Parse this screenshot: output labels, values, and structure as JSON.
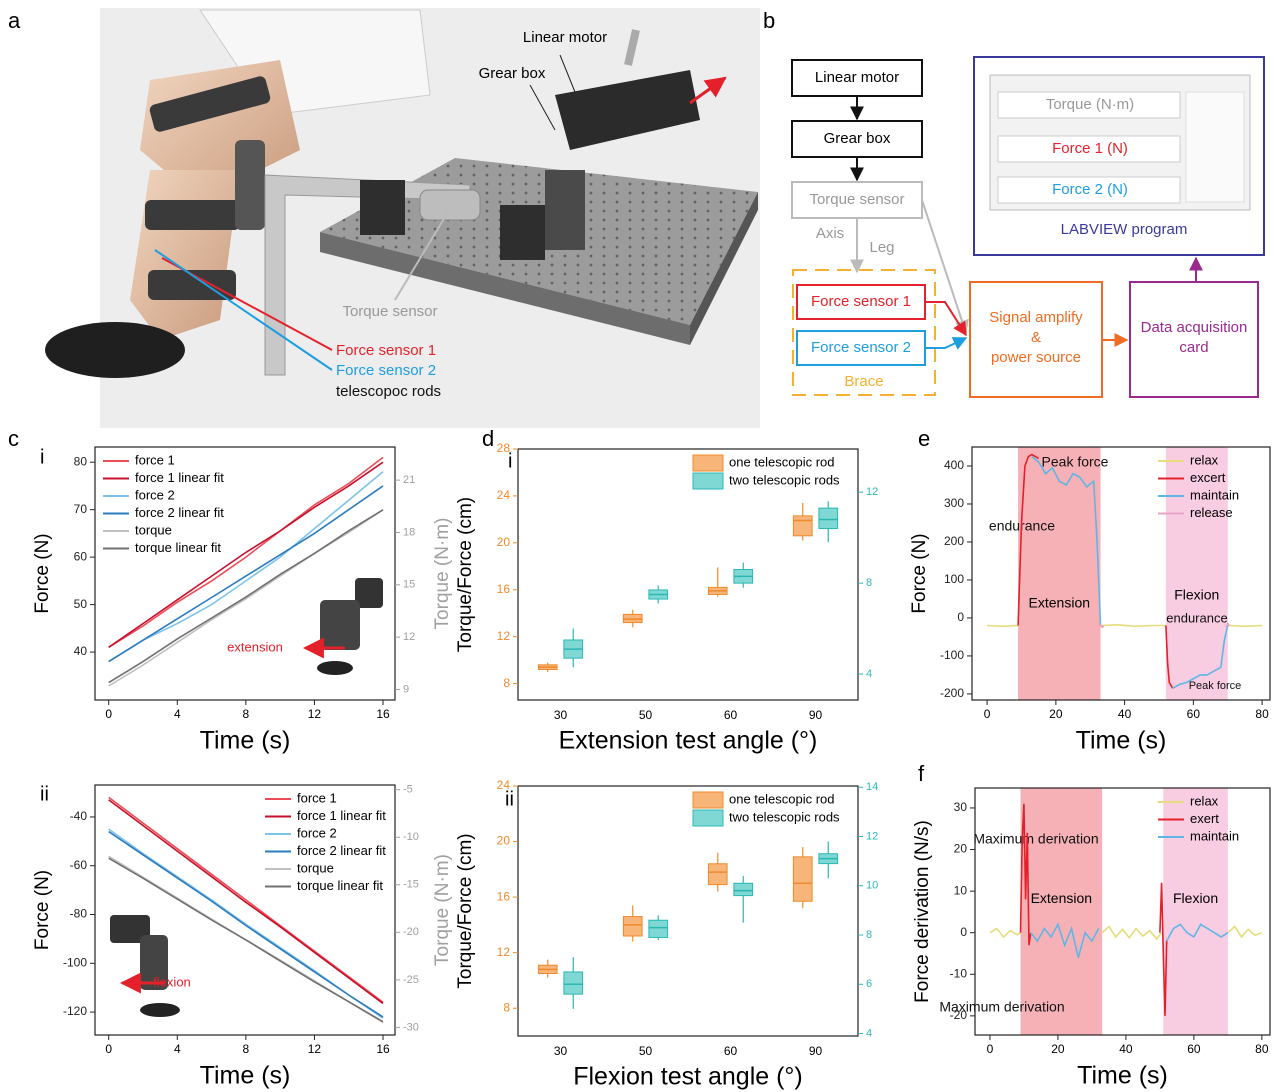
{
  "panel_labels": [
    "a",
    "b",
    "c",
    "d",
    "e",
    "f"
  ],
  "photo": {
    "labels": [
      "Linear motor",
      "Grear box",
      "Torque sensor",
      "Force sensor 1",
      "Force sensor 2",
      "telescopoc rods"
    ]
  },
  "diagram": {
    "nodes": [
      "Linear motor",
      "Grear box",
      "Torque sensor",
      "Force sensor 1",
      "Force sensor 2"
    ],
    "edge_labels": [
      "Axis",
      "Leg"
    ],
    "group": "Brace",
    "amplifier": [
      "Signal amplify",
      "&",
      "power source"
    ],
    "daq": [
      "Data acquisition",
      "card"
    ],
    "screen": [
      "Torque (N·m)",
      "Force 1 (N)",
      "Force 2 (N)"
    ],
    "program": "LABVIEW program"
  },
  "chart_data": [
    {
      "type": "line",
      "sublabel": "i",
      "xlabel": "Time (s)",
      "ylabel": "Force (N)",
      "y2label": "Torque (N·m)",
      "y2color": "#a0a0a0",
      "annotations": [
        "extension"
      ],
      "legend": "upper left",
      "x": [
        0,
        2,
        4,
        6,
        8,
        10,
        12,
        14,
        16
      ],
      "xlim": [
        -0.8,
        16.7
      ],
      "xticks": [
        0,
        4,
        8,
        12,
        16
      ],
      "ylim": [
        29.9,
        83.2
      ],
      "yticks": [
        40,
        50,
        60,
        70,
        80
      ],
      "y2lim": [
        8.4,
        22.9
      ],
      "y2ticks": [
        9,
        12,
        15,
        18,
        21
      ],
      "series": [
        {
          "name": "force 1",
          "color": "#ec4c55",
          "values": [
            41,
            45.5,
            50.5,
            55,
            60,
            65.5,
            71,
            75.5,
            81
          ]
        },
        {
          "name": "force 1 linear fit",
          "color": "#c8102e",
          "values": [
            41,
            46,
            51,
            56,
            61,
            65.5,
            70.5,
            75,
            80
          ]
        },
        {
          "name": "force 2",
          "color": "#7cc3ea",
          "values": [
            38,
            42.5,
            46,
            50,
            55,
            60,
            66,
            72,
            78
          ]
        },
        {
          "name": "force 2 linear fit",
          "color": "#2b7bbf",
          "values": [
            38,
            42.5,
            47,
            51.5,
            56,
            60.5,
            65,
            70,
            75
          ]
        },
        {
          "name": "torque",
          "color": "#c0c0c0",
          "axis": "y2",
          "values": [
            9.2,
            10.4,
            11.7,
            13.0,
            14.2,
            15.5,
            16.8,
            18.0,
            19.3
          ]
        },
        {
          "name": "torque linear fit",
          "color": "#707070",
          "axis": "y2",
          "values": [
            9.4,
            10.6,
            11.9,
            13.1,
            14.3,
            15.6,
            16.8,
            18.1,
            19.3
          ]
        }
      ]
    },
    {
      "type": "line",
      "sublabel": "ii",
      "xlabel": "Time (s)",
      "ylabel": "Force (N)",
      "y2label": "Torque (N·m)",
      "y2color": "#a0a0a0",
      "annotations": [
        "flexion"
      ],
      "legend": "upper right",
      "x": [
        0,
        2,
        4,
        6,
        8,
        10,
        12,
        14,
        16
      ],
      "xlim": [
        -0.8,
        16.7
      ],
      "xticks": [
        0,
        4,
        8,
        12,
        16
      ],
      "ylim": [
        -129.4,
        -26.9
      ],
      "yticks": [
        -40,
        -60,
        -80,
        -100,
        -120
      ],
      "y2lim": [
        -30.8,
        -4.5
      ],
      "y2ticks": [
        -5,
        -10,
        -15,
        -20,
        -25,
        -30
      ],
      "series": [
        {
          "name": "force 1",
          "color": "#ec4c55",
          "values": [
            -32,
            -42.5,
            -53,
            -63.5,
            -74,
            -84.5,
            -95,
            -105.5,
            -116
          ]
        },
        {
          "name": "force 1 linear fit",
          "color": "#c8102e",
          "values": [
            -33,
            -43.5,
            -54,
            -64.5,
            -75,
            -85,
            -95.5,
            -106,
            -116.5
          ]
        },
        {
          "name": "force 2",
          "color": "#7cc3ea",
          "values": [
            -45,
            -55,
            -64.5,
            -74,
            -84,
            -93.5,
            -103,
            -113,
            -122.5
          ]
        },
        {
          "name": "force 2 linear fit",
          "color": "#2b7bbf",
          "values": [
            -46,
            -55.5,
            -65,
            -74.5,
            -84.5,
            -94,
            -103.5,
            -113,
            -122
          ]
        },
        {
          "name": "torque",
          "color": "#c0c0c0",
          "axis": "y2",
          "values": [
            -12,
            -14.2,
            -16.4,
            -18.6,
            -20.8,
            -22.9,
            -25.1,
            -27.3,
            -29.5
          ]
        },
        {
          "name": "torque linear fit",
          "color": "#707070",
          "axis": "y2",
          "values": [
            -12.2,
            -14.3,
            -16.5,
            -18.7,
            -20.8,
            -23.0,
            -25.2,
            -27.3,
            -29.4
          ]
        }
      ]
    },
    {
      "type": "box",
      "sublabel": "i",
      "xlabel": "Extension test angle (°)",
      "ylabel": "Torque/Force (cm)",
      "ycolor": "#f08a2c",
      "y2color": "#2bb8b5",
      "legend": "upper right",
      "categories": [
        "30",
        "50",
        "60",
        "90"
      ],
      "ylim": [
        6.6,
        28
      ],
      "yticks": [
        8,
        12,
        16,
        20,
        24,
        28
      ],
      "y2lim": [
        2.86,
        13.9
      ],
      "y2ticks": [
        4,
        8,
        12
      ],
      "series": [
        {
          "name": "one telescopic rod",
          "color": "#f08a2c",
          "fill": "#f7b57a",
          "low": [
            9.0,
            12.8,
            15.4,
            20.2
          ],
          "q1": [
            9.2,
            13.2,
            15.6,
            20.6
          ],
          "median": [
            9.4,
            13.5,
            15.9,
            21.9
          ],
          "q3": [
            9.6,
            13.9,
            16.2,
            22.3
          ],
          "high": [
            9.8,
            14.3,
            17.9,
            23.4
          ]
        },
        {
          "name": "two telescopic rods",
          "color": "#2bb8b5",
          "fill": "#7fd8d4",
          "axis": "y2",
          "low": [
            4.3,
            7.1,
            7.8,
            9.8
          ],
          "q1": [
            4.7,
            7.3,
            8.0,
            10.4
          ],
          "median": [
            5.1,
            7.5,
            8.3,
            10.8
          ],
          "q3": [
            5.5,
            7.7,
            8.6,
            11.3
          ],
          "high": [
            6.0,
            7.9,
            8.9,
            11.6
          ]
        }
      ]
    },
    {
      "type": "box",
      "sublabel": "ii",
      "xlabel": "Flexion test angle (°)",
      "ylabel": "Torque/Force (cm)",
      "ycolor": "#f08a2c",
      "y2color": "#2bb8b5",
      "legend": "upper right",
      "categories": [
        "30",
        "50",
        "60",
        "90"
      ],
      "ylim": [
        6,
        24
      ],
      "yticks": [
        8,
        12,
        16,
        20,
        24
      ],
      "y2lim": [
        3.9,
        14.05
      ],
      "y2ticks": [
        4,
        6,
        8,
        10,
        12,
        14
      ],
      "series": [
        {
          "name": "one telescopic rod",
          "color": "#f08a2c",
          "fill": "#f7b57a",
          "low": [
            10.2,
            12.8,
            16.4,
            15.2
          ],
          "q1": [
            10.5,
            13.2,
            16.9,
            15.7
          ],
          "median": [
            10.8,
            14.0,
            17.8,
            17.0
          ],
          "q3": [
            11.1,
            14.6,
            18.4,
            18.9
          ],
          "high": [
            11.5,
            15.4,
            19.2,
            19.6
          ]
        },
        {
          "name": "two telescopic rods",
          "color": "#2bb8b5",
          "fill": "#7fd8d4",
          "axis": "y2",
          "low": [
            5.0,
            7.8,
            8.5,
            10.3
          ],
          "q1": [
            5.6,
            7.9,
            9.6,
            10.9
          ],
          "median": [
            6.0,
            8.3,
            9.8,
            11.1
          ],
          "q3": [
            6.5,
            8.6,
            10.1,
            11.3
          ],
          "high": [
            7.1,
            8.8,
            10.4,
            11.8
          ]
        }
      ]
    },
    {
      "type": "line",
      "xlabel": "Time (s)",
      "ylabel": "Force (N)",
      "legend": "upper right",
      "annotations": [
        "Peak force",
        "endurance",
        "endurance",
        "Peak force"
      ],
      "xlim": [
        -4.4,
        82.3
      ],
      "xticks": [
        0,
        20,
        40,
        60,
        80
      ],
      "ylim": [
        -216,
        450
      ],
      "yticks": [
        -200,
        -100,
        0,
        100,
        200,
        300,
        400
      ],
      "regions": [
        {
          "label": "Extension",
          "x": [
            9,
            33
          ],
          "color": "#f4a3aa"
        },
        {
          "label": "Flexion",
          "x": [
            52,
            70
          ],
          "color": "#f7c3dc"
        }
      ],
      "series": [
        {
          "name": "relax",
          "color": "#e6dc7a",
          "x": [
            0,
            5,
            9,
            9.5,
            33,
            38,
            43,
            48,
            52,
            52.5,
            70,
            75,
            80
          ],
          "values": [
            -20,
            -22,
            -20,
            null,
            -20,
            -18,
            -22,
            -20,
            -20,
            null,
            -20,
            -22,
            -20
          ]
        },
        {
          "name": "excert",
          "color": "#e4202a",
          "x": [
            9,
            10,
            11,
            12,
            13,
            15,
            15.5,
            52,
            52.5,
            53,
            54
          ],
          "values": [
            -20,
            250,
            400,
            425,
            430,
            420,
            null,
            -20,
            -120,
            -170,
            -185
          ]
        },
        {
          "name": "maintain",
          "color": "#5fb6e6",
          "x": [
            13,
            15,
            17,
            19,
            21,
            23,
            25,
            27,
            29,
            31,
            32,
            33,
            33.5,
            54,
            56,
            58,
            60,
            62,
            64,
            66,
            68,
            69,
            70
          ],
          "values": [
            425,
            410,
            380,
            395,
            360,
            350,
            380,
            370,
            345,
            360,
            200,
            -20,
            null,
            -185,
            -175,
            -170,
            -160,
            -150,
            -150,
            -140,
            -130,
            -60,
            -20
          ]
        },
        {
          "name": "release",
          "color": "#e7a3c4",
          "x": [
            32.5,
            33.5,
            34,
            35,
            69.5,
            70,
            70.5
          ],
          "values": [
            -15,
            -25,
            -20,
            null,
            -25,
            -15,
            -20
          ]
        }
      ]
    },
    {
      "type": "line",
      "xlabel": "Time (s)",
      "ylabel": "Force derivation (N/s)",
      "legend": "upper right",
      "annotations": [
        "Maximum derivation",
        "Maximum derivation"
      ],
      "xlim": [
        -4.4,
        82.4
      ],
      "xticks": [
        0,
        20,
        40,
        60,
        80
      ],
      "ylim": [
        -24.6,
        34.8
      ],
      "yticks": [
        -20,
        -10,
        0,
        10,
        20,
        30
      ],
      "regions": [
        {
          "label": "Extension",
          "x": [
            9,
            33
          ],
          "color": "#f4a3aa"
        },
        {
          "label": "Flexion",
          "x": [
            51,
            70
          ],
          "color": "#f7c3dc"
        }
      ],
      "series": [
        {
          "name": "relax",
          "color": "#e6dc7a",
          "x": [
            0,
            2,
            4,
            6,
            8,
            9,
            9.5,
            33,
            35,
            37,
            39,
            41,
            43,
            45,
            47,
            49,
            50.5,
            51,
            70,
            72,
            74,
            76,
            78,
            80
          ],
          "values": [
            0,
            1,
            -1,
            0.5,
            -0.5,
            0,
            null,
            0,
            1.5,
            -1,
            0.8,
            -1.2,
            1,
            -0.8,
            0.5,
            -1.5,
            0,
            null,
            0,
            1.5,
            -1,
            0.8,
            -0.6,
            0
          ]
        },
        {
          "name": "exert",
          "color": "#e4202a",
          "x": [
            9,
            9.5,
            10,
            10.5,
            11,
            11.5,
            12,
            12.5,
            50,
            50.5,
            51,
            51.5,
            52
          ],
          "values": [
            0,
            22,
            31,
            8,
            24,
            -3,
            0,
            null,
            0,
            12,
            -5,
            -20,
            -2
          ]
        },
        {
          "name": "maintain",
          "color": "#5fb6e6",
          "x": [
            12,
            14,
            16,
            18,
            20,
            22,
            24,
            26,
            28,
            30,
            32,
            33,
            52,
            54,
            56,
            58,
            60,
            62,
            64,
            66,
            68,
            70
          ],
          "values": [
            0,
            -2,
            1,
            -1,
            2,
            -3,
            1,
            -6,
            0,
            -2,
            1,
            null,
            -2,
            1,
            2,
            0,
            -1,
            2,
            1,
            0,
            -1,
            0
          ]
        }
      ]
    }
  ]
}
